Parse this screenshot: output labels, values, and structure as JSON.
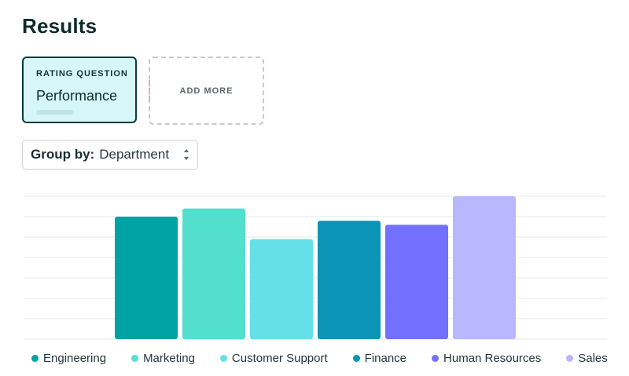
{
  "page": {
    "title": "Results"
  },
  "question_card": {
    "type_label": "RATING QUESTION",
    "title": "Performance"
  },
  "add_more": {
    "label": "ADD MORE"
  },
  "group_by": {
    "label": "Group by:",
    "value": "Department"
  },
  "chart_data": {
    "type": "bar",
    "categories": [
      "Engineering",
      "Marketing",
      "Customer Support",
      "Finance",
      "Human Resources",
      "Sales"
    ],
    "values": [
      6.0,
      6.4,
      4.9,
      5.8,
      5.6,
      7.0
    ],
    "colors": [
      "#00a3a3",
      "#52dfce",
      "#66e0e8",
      "#0b94b5",
      "#7370ff",
      "#b9b7ff"
    ],
    "ylim": [
      0,
      7
    ],
    "grid": true,
    "legend_position": "bottom",
    "title": "",
    "xlabel": "",
    "ylabel": ""
  }
}
